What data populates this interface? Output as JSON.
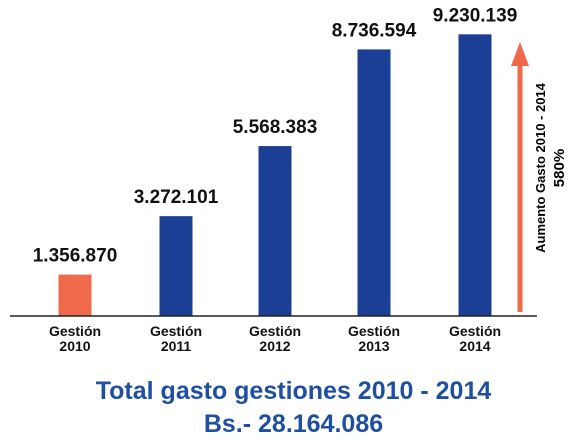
{
  "chart_data": {
    "type": "bar",
    "categories": [
      "Gestión\n2010",
      "Gestión\n2011",
      "Gestión\n2012",
      "Gestión\n2013",
      "Gestión\n2014"
    ],
    "values": [
      1356870,
      3272101,
      5568383,
      8736594,
      9230139
    ],
    "value_labels": [
      "1.356.870",
      "3.272.101",
      "5.568.383",
      "8.736.594",
      "9.230.139"
    ],
    "colors": [
      "#ef6a4b",
      "#1a3f94",
      "#1a3f94",
      "#1a3f94",
      "#1a3f94"
    ],
    "ylim": [
      0,
      9700000
    ],
    "grid": false,
    "annotation": {
      "label_line1": "Aumento Gasto 2010 - 2014",
      "label_line2": "580%",
      "arrow_color": "#ef6a4b"
    }
  },
  "footer": {
    "line1": "Total gasto gestiones 2010 - 2014",
    "line2": "Bs.- 28.164.086"
  }
}
